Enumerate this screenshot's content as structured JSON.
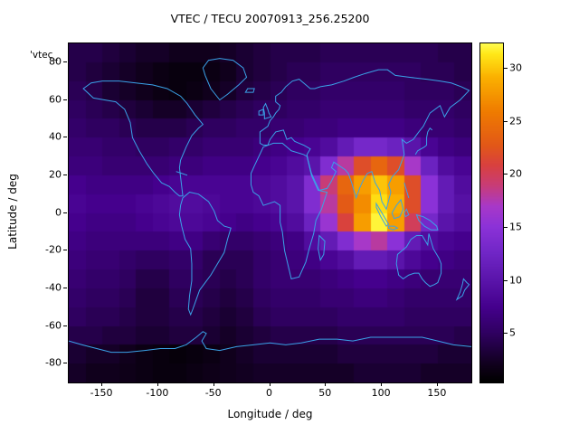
{
  "chart_data": {
    "type": "heatmap",
    "title": "VTEC / TECU 20070913_256.25200",
    "xlabel": "Longitude / deg",
    "ylabel": "Latitude / deg",
    "key_label": "'vtec_",
    "x_range": [
      -180,
      180
    ],
    "y_range": [
      -90,
      90
    ],
    "x_ticks": [
      -150,
      -100,
      -50,
      0,
      50,
      100,
      150
    ],
    "y_ticks": [
      80,
      60,
      40,
      20,
      0,
      -20,
      -40,
      -60,
      -80
    ],
    "colorbar": {
      "range": [
        0.4,
        32.4
      ],
      "ticks": [
        5,
        10,
        15,
        20,
        25,
        30
      ],
      "position": "right"
    },
    "grid": false,
    "coastline_color": "#3aa2e8",
    "palette": [
      [
        0.0,
        "#000000"
      ],
      [
        0.05,
        "#10001c"
      ],
      [
        0.14,
        "#2e005e"
      ],
      [
        0.22,
        "#44008c"
      ],
      [
        0.3,
        "#5a14aa"
      ],
      [
        0.38,
        "#7026c6"
      ],
      [
        0.46,
        "#8c32d8"
      ],
      [
        0.52,
        "#a838c8"
      ],
      [
        0.58,
        "#c83c78"
      ],
      [
        0.64,
        "#d84040"
      ],
      [
        0.7,
        "#e25818"
      ],
      [
        0.8,
        "#ef7c00"
      ],
      [
        0.9,
        "#fbb000"
      ],
      [
        0.97,
        "#ffe818"
      ],
      [
        1.0,
        "#fffc50"
      ]
    ],
    "lon_centers": [
      -172.5,
      -157.5,
      -142.5,
      -127.5,
      -112.5,
      -97.5,
      -82.5,
      -67.5,
      -52.5,
      -37.5,
      -22.5,
      -7.5,
      7.5,
      22.5,
      37.5,
      52.5,
      67.5,
      82.5,
      97.5,
      112.5,
      127.5,
      142.5,
      157.5,
      172.5
    ],
    "lat_centers": [
      85,
      75,
      65,
      55,
      45,
      35,
      25,
      15,
      5,
      -5,
      -15,
      -25,
      -35,
      -45,
      -55,
      -65,
      -75,
      -85
    ],
    "values": [
      [
        4,
        4,
        3.5,
        3,
        2.5,
        2.5,
        2,
        2,
        2,
        2.5,
        3,
        3.5,
        4,
        4,
        4,
        4.5,
        4.5,
        4.5,
        4.5,
        4.5,
        4.5,
        4.5,
        4,
        4
      ],
      [
        4,
        3.5,
        3,
        2.5,
        2,
        1.5,
        1.2,
        1.2,
        1.5,
        2,
        3,
        3.5,
        4,
        4.5,
        4.5,
        5,
        5,
        5,
        5,
        5,
        5,
        4.5,
        4.5,
        4
      ],
      [
        4.5,
        4,
        3,
        2.5,
        2,
        1.5,
        1.2,
        1.5,
        2,
        2.5,
        3.5,
        4,
        4.5,
        5,
        5,
        5.5,
        5.5,
        5.5,
        5.5,
        5.5,
        5,
        5,
        5,
        4.5
      ],
      [
        5,
        4.5,
        4,
        3.5,
        3,
        2.5,
        2.5,
        3,
        3.5,
        4,
        4.5,
        5,
        5,
        5.5,
        5.5,
        6,
        6,
        6,
        6,
        6,
        5.5,
        5.5,
        5.5,
        5
      ],
      [
        5.5,
        5,
        5,
        4.5,
        4,
        4,
        4,
        4.5,
        5,
        5,
        5.5,
        5.5,
        6,
        6,
        6.5,
        6.5,
        7,
        7,
        7,
        7,
        6.5,
        6,
        6,
        5.5
      ],
      [
        6,
        6,
        5.5,
        5.5,
        5,
        5,
        5.5,
        5.5,
        6,
        6,
        6,
        6.5,
        7,
        7.5,
        8,
        9,
        11,
        13,
        13,
        12,
        10,
        8,
        7,
        6.5
      ],
      [
        6.5,
        6.5,
        6,
        6,
        6,
        6,
        6.5,
        6.5,
        7,
        7,
        7,
        7.5,
        8,
        9,
        10,
        14,
        18,
        22,
        24,
        22,
        17,
        12,
        9,
        8
      ],
      [
        7.5,
        7,
        7,
        7,
        7,
        7.5,
        8,
        8,
        8,
        8,
        8,
        8.5,
        9,
        10,
        14,
        19,
        24,
        28,
        30,
        28,
        22,
        15,
        11,
        9
      ],
      [
        8,
        7.5,
        7.5,
        7.5,
        8,
        8.5,
        9,
        9,
        8.5,
        8,
        8,
        8.5,
        9,
        10,
        14,
        18,
        23,
        27,
        31,
        29,
        22,
        15,
        11,
        9.5
      ],
      [
        7.5,
        7,
        7,
        7,
        7.5,
        8,
        8.5,
        8.5,
        8,
        7.5,
        7,
        7.5,
        8,
        9,
        12,
        16,
        21,
        28,
        32,
        28,
        20,
        13,
        10,
        9
      ],
      [
        7,
        6.5,
        6.5,
        6.5,
        6.5,
        6.5,
        7,
        7,
        6,
        5.5,
        5.5,
        6,
        6.5,
        7,
        9,
        11,
        14,
        17,
        18,
        15,
        11,
        9,
        8,
        7.5
      ],
      [
        6.5,
        6,
        6,
        5.5,
        5,
        5,
        5.5,
        5.5,
        4.5,
        4.5,
        4.5,
        5.5,
        6,
        6.5,
        7,
        8,
        9,
        11,
        11,
        10,
        8.5,
        7.5,
        7,
        6.5
      ],
      [
        6,
        5.5,
        5.5,
        5,
        4,
        4,
        5,
        5,
        4.5,
        4,
        4.5,
        5.5,
        6,
        6,
        6,
        6.5,
        7,
        7.5,
        7.5,
        7,
        6.5,
        6,
        6,
        6
      ],
      [
        5.5,
        5,
        5,
        4.5,
        3.5,
        3.5,
        4.5,
        4.5,
        4,
        3.5,
        4,
        5,
        5.5,
        5.5,
        5.5,
        6,
        6,
        6.5,
        6.5,
        6,
        5.5,
        5.5,
        5.5,
        5.5
      ],
      [
        5,
        4.5,
        4.5,
        4,
        3.5,
        3.5,
        4,
        4,
        3.5,
        3,
        3.5,
        4.5,
        5,
        5,
        5,
        5,
        5.5,
        5.5,
        5.5,
        5.5,
        5,
        5,
        5,
        5
      ],
      [
        4,
        4,
        3.5,
        3.5,
        3,
        3,
        3.5,
        3.5,
        3,
        2.5,
        3,
        3.5,
        4,
        4,
        4,
        4,
        4.5,
        4.5,
        4.5,
        4.5,
        4.5,
        4.5,
        4.5,
        4
      ],
      [
        3,
        2.5,
        2.5,
        2,
        1.5,
        1.2,
        1,
        1.2,
        1.5,
        2,
        2.5,
        3,
        3,
        3,
        3,
        3,
        3.5,
        3.5,
        3.5,
        3.5,
        3.5,
        3.5,
        3,
        3
      ],
      [
        2.5,
        2,
        2,
        1.8,
        1.5,
        1.2,
        1.2,
        1.5,
        1.8,
        2,
        2.2,
        2.5,
        2.5,
        2.5,
        2.5,
        2.5,
        2.5,
        3,
        3,
        3,
        3,
        2.5,
        2.5,
        2.5
      ]
    ]
  }
}
